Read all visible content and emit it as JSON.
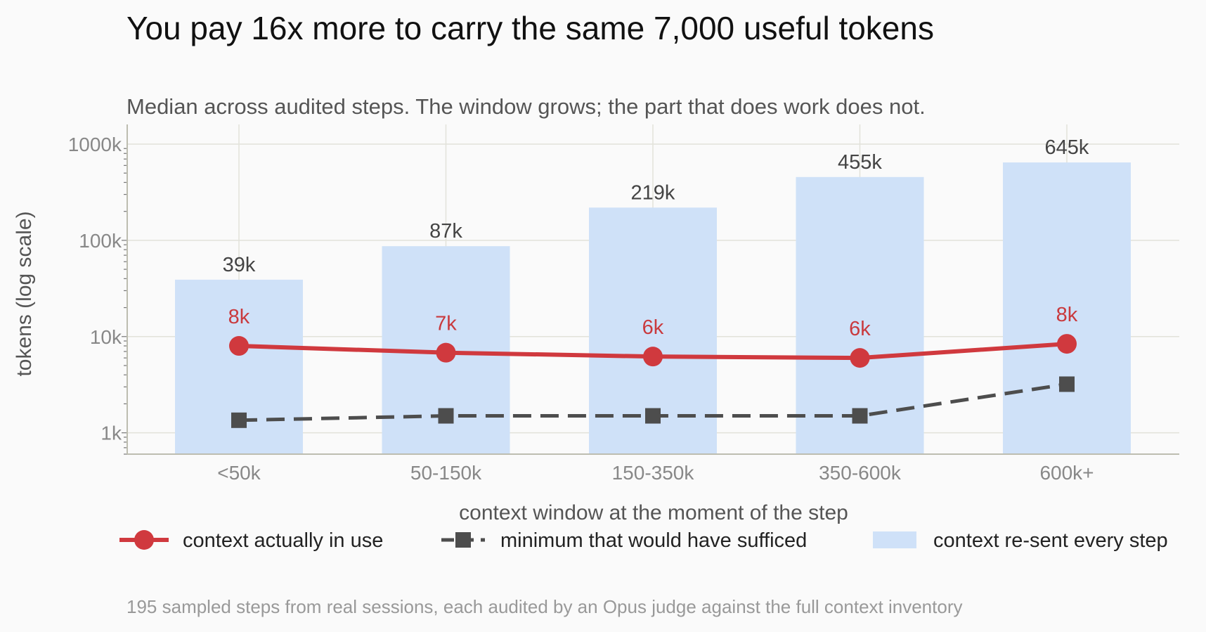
{
  "chart_data": {
    "type": "bar",
    "title": "You pay 16x more to carry the same 7,000 useful tokens",
    "subtitle": "Median across audited steps. The window grows; the part that does work does not.",
    "xlabel": "context window at the moment of the step",
    "ylabel": "tokens (log scale)",
    "yscale": "log",
    "ylim": [
      600,
      1400000
    ],
    "ytick_values": [
      1000,
      10000,
      100000,
      1000000
    ],
    "ytick_labels": [
      "1k",
      "10k",
      "100k",
      "1000k"
    ],
    "grid": true,
    "legend_position": "bottom",
    "categories": [
      "<50k",
      "50-150k",
      "150-350k",
      "350-600k",
      "600k+"
    ],
    "series": [
      {
        "name": "context re-sent every step",
        "kind": "bar",
        "color": "#cfe1f8",
        "values": [
          39000,
          87000,
          219000,
          455000,
          645000
        ],
        "labels": [
          "39k",
          "87k",
          "219k",
          "455k",
          "645k"
        ]
      },
      {
        "name": "context actually in use",
        "kind": "line",
        "marker": "circle",
        "color": "#d0393e",
        "values": [
          8000,
          6800,
          6200,
          6000,
          8400
        ],
        "labels": [
          "8k",
          "7k",
          "6k",
          "6k",
          "8k"
        ]
      },
      {
        "name": "minimum that would have sufficed",
        "kind": "line",
        "marker": "square",
        "dash": true,
        "color": "#4d4d4d",
        "values": [
          1350,
          1500,
          1500,
          1500,
          3200
        ]
      }
    ],
    "footnote": "195 sampled steps from real sessions, each audited by an Opus judge against the full context inventory"
  }
}
